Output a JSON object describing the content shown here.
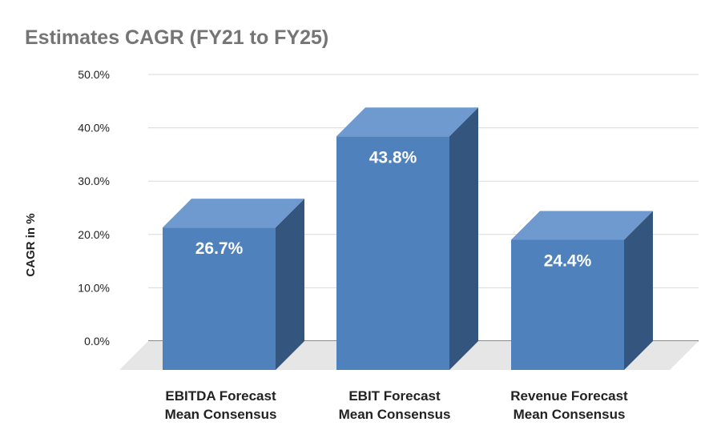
{
  "chart_data": {
    "type": "bar",
    "title": "Estimates CAGR (FY21 to FY25)",
    "xlabel": "",
    "ylabel": "CAGR in %",
    "ylim": [
      0,
      50
    ],
    "yticks": [
      "0.0%",
      "10.0%",
      "20.0%",
      "30.0%",
      "40.0%",
      "50.0%"
    ],
    "categories": [
      [
        "EBITDA Forecast",
        "Mean Consensus"
      ],
      [
        "EBIT Forecast",
        "Mean Consensus"
      ],
      [
        "Revenue Forecast",
        "Mean Consensus"
      ]
    ],
    "values": [
      26.7,
      43.8,
      24.4
    ],
    "value_labels": [
      "26.7%",
      "43.8%",
      "24.4%"
    ],
    "grid": true,
    "legend": "none",
    "style": "3d"
  },
  "colors": {
    "bar_front": "#4f81bd",
    "bar_top": "#6f9ad0",
    "bar_side": "#34557d",
    "floor": "#e6e6e6",
    "grid": "#d9d9d9",
    "title": "#757575"
  }
}
